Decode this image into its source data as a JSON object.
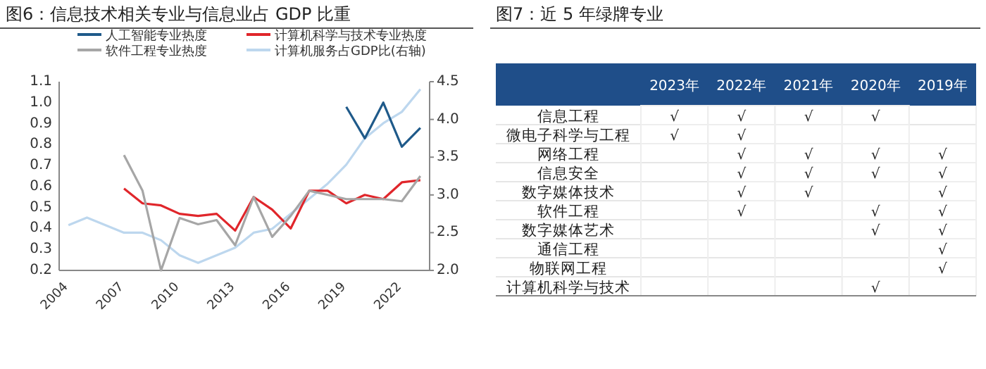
{
  "chart_data": [
    {
      "type": "line",
      "title": "图6：信息技术相关专业与信息业占 GDP 比重",
      "categories": [
        "2004",
        null,
        null,
        "2007",
        null,
        null,
        "2010",
        null,
        null,
        "2013",
        null,
        null,
        "2016",
        null,
        null,
        "2019",
        null,
        null,
        "2022",
        null
      ],
      "series": [
        {
          "name": "人工智能专业热度",
          "color": "#1f5a8a",
          "values": [
            null,
            null,
            null,
            null,
            null,
            null,
            null,
            null,
            null,
            null,
            null,
            null,
            null,
            null,
            null,
            0.98,
            0.83,
            1.0,
            0.79,
            0.88
          ]
        },
        {
          "name": "计算机科学与技术专业热度",
          "color": "#e0262b",
          "values": [
            null,
            null,
            null,
            0.59,
            0.52,
            0.51,
            0.47,
            0.46,
            0.47,
            0.39,
            0.55,
            0.49,
            0.4,
            0.58,
            0.58,
            0.52,
            0.56,
            0.54,
            0.62,
            0.63
          ]
        },
        {
          "name": "软件工程专业热度",
          "color": "#a6a6a6",
          "values": [
            null,
            null,
            null,
            0.75,
            0.58,
            0.2,
            0.45,
            0.42,
            0.44,
            0.32,
            0.55,
            0.36,
            0.46,
            0.58,
            0.56,
            0.54,
            0.54,
            0.54,
            0.53,
            0.65
          ]
        },
        {
          "name": "计算机服务占GDP比(右轴)",
          "color": "#bdd7ee",
          "axis": "y2",
          "values": [
            2.6,
            2.7,
            2.6,
            2.5,
            2.5,
            2.4,
            2.2,
            2.1,
            2.2,
            2.3,
            2.5,
            2.55,
            2.75,
            2.95,
            3.15,
            3.4,
            3.75,
            3.95,
            4.1,
            4.4
          ]
        }
      ],
      "ylim": [
        0.2,
        1.1
      ],
      "yticks": [
        {
          "value": 0.2,
          "label": "0.2"
        },
        {
          "value": 0.3,
          "label": "0.3"
        },
        {
          "value": 0.4,
          "label": "0.4"
        },
        {
          "value": 0.5,
          "label": "0.5"
        },
        {
          "value": 0.6,
          "label": "0.6"
        },
        {
          "value": 0.7,
          "label": "0.7"
        },
        {
          "value": 0.8,
          "label": "0.8"
        },
        {
          "value": 0.9,
          "label": "0.9"
        },
        {
          "value": 1.0,
          "label": "1.0"
        },
        {
          "value": 1.1,
          "label": "1.1"
        }
      ],
      "y2lim": [
        2.0,
        4.5
      ],
      "y2ticks": [
        {
          "value": 2.0,
          "label": "2.0"
        },
        {
          "value": 2.5,
          "label": "2.5"
        },
        {
          "value": 3.0,
          "label": "3.0"
        },
        {
          "value": 3.5,
          "label": "3.5"
        },
        {
          "value": 4.0,
          "label": "4.0"
        },
        {
          "value": 4.5,
          "label": "4.5"
        }
      ],
      "legend": "top",
      "grid": false,
      "marker": "none"
    },
    {
      "type": "heatmap",
      "title": "图7：近 5 年绿牌专业",
      "categories": [
        "2023年",
        "2022年",
        "2021年",
        "2020年",
        "2019年"
      ],
      "y_categories": [
        "信息工程",
        "微电子科学与工程",
        "网络工程",
        "信息安全",
        "数字媒体技术",
        "软件工程",
        "数字媒体艺术",
        "通信工程",
        "物联网工程",
        "计算机科学与技术"
      ],
      "cells": [
        [
          "√",
          "√",
          "√",
          "√",
          null
        ],
        [
          "√",
          "√",
          null,
          null,
          null
        ],
        [
          null,
          "√",
          "√",
          "√",
          "√"
        ],
        [
          null,
          "√",
          "√",
          "√",
          "√"
        ],
        [
          null,
          "√",
          "√",
          null,
          "√"
        ],
        [
          null,
          "√",
          null,
          "√",
          "√"
        ],
        [
          null,
          null,
          null,
          "√",
          "√"
        ],
        [
          null,
          null,
          null,
          null,
          "√"
        ],
        [
          null,
          null,
          null,
          null,
          "√"
        ],
        [
          null,
          null,
          null,
          "√",
          null
        ]
      ]
    }
  ]
}
